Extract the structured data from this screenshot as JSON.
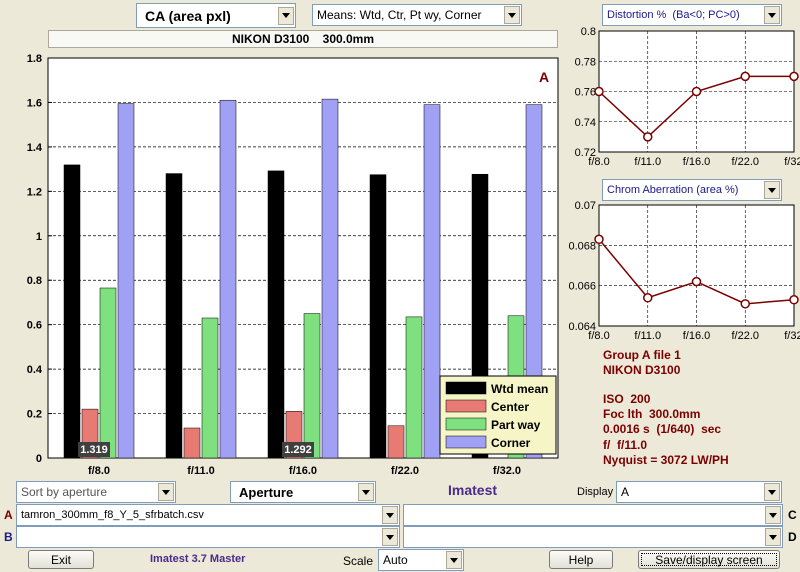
{
  "toolbar": {
    "metric_select": "CA (area pxl)",
    "means_select": "Means: Wtd, Ctr, Pt wy, Corner",
    "distortion_select": "Distortion %  (Ba<0; PC>0)",
    "chrom_select": "Chrom Aberration (area %)"
  },
  "camera_title": "NIKON D3100    300.0mm",
  "main_chart": {
    "type": "bar",
    "categories": [
      "f/8.0",
      "f/11.0",
      "f/16.0",
      "f/22.0",
      "f/32.0"
    ],
    "series": [
      {
        "name": "Wtd mean",
        "color": "#000000",
        "values": [
          1.319,
          1.28,
          1.292,
          1.275,
          1.277
        ]
      },
      {
        "name": "Center",
        "color": "#e87a74",
        "values": [
          0.22,
          0.135,
          0.21,
          0.145,
          0.0
        ]
      },
      {
        "name": "Part way",
        "color": "#7ee07e",
        "values": [
          0.765,
          0.63,
          0.65,
          0.635,
          0.64
        ]
      },
      {
        "name": "Corner",
        "color": "#a0a0f4",
        "values": [
          1.595,
          1.61,
          1.615,
          1.59,
          1.59
        ]
      }
    ],
    "ylim": [
      0,
      1.8
    ],
    "yticks": [
      "0",
      "0.2",
      "0.4",
      "0.6",
      "0.8",
      "1",
      "1.2",
      "1.4",
      "1.6",
      "1.8"
    ],
    "corner_label": "A",
    "value_labels": [
      "1.319",
      "1.292"
    ],
    "legend_placement": "bottom-right",
    "grid": true
  },
  "distortion_chart": {
    "type": "line",
    "categories": [
      "f/8.0",
      "f/11.0",
      "f/16.0",
      "f/22.0",
      "f/32.0"
    ],
    "values": [
      0.76,
      0.73,
      0.76,
      0.77,
      0.77
    ],
    "ylim": [
      0.72,
      0.8
    ],
    "yticks": [
      "0.72",
      "0.74",
      "0.76",
      "0.78",
      "0.8"
    ],
    "color": "#7a0000"
  },
  "chrom_chart": {
    "type": "line",
    "categories": [
      "f/8.0",
      "f/11.0",
      "f/16.0",
      "f/22.0",
      "f/32.0"
    ],
    "values": [
      0.0683,
      0.0654,
      0.0662,
      0.0651,
      0.0653
    ],
    "ylim": [
      0.064,
      0.07
    ],
    "yticks": [
      "0.064",
      "0.066",
      "0.068",
      "0.07"
    ],
    "color": "#7a0000"
  },
  "info_panel": {
    "group": "Group A file 1",
    "camera": "NIKON D3100",
    "iso": "ISO  200",
    "focal": "Foc lth  300.0mm",
    "shutter": "0.0016 s  (1/640)  sec",
    "aperture": "f/  f/11.0",
    "nyquist": "Nyquist = 3072 LW/PH"
  },
  "controls": {
    "sort_select": "Sort by aperture",
    "aperture_select": "Aperture",
    "imatest_title": "Imatest",
    "display_label": "Display",
    "display_select": "A",
    "file_a_label": "A",
    "file_a_value": "tamron_300mm_f8_Y_5_sfrbatch.csv",
    "file_b_label": "B",
    "file_b_value": "",
    "file_c_label": "C",
    "file_c_value": "",
    "file_d_label": "D",
    "file_d_value": "",
    "exit_label": "Exit",
    "version": "Imatest 3.7 Master",
    "scale_label": "Scale",
    "scale_select": "Auto",
    "help_label": "Help",
    "save_label": "Save/display screen"
  },
  "colors": {
    "accent": "#7a0000",
    "title_purple": "#4b2a8a",
    "select_text": "#1a1a8c"
  }
}
